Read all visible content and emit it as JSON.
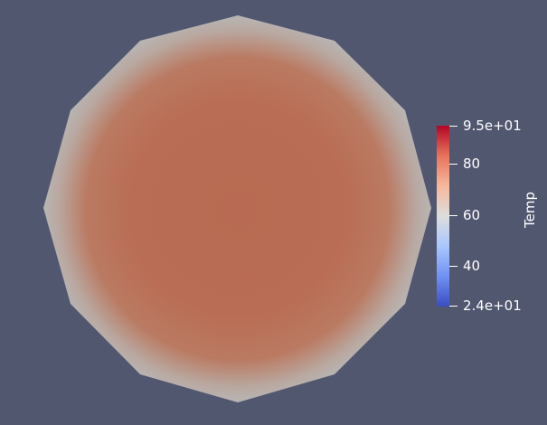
{
  "scene": {
    "background_color": "#525770",
    "field_name": "Temp",
    "shape": "dodecagon",
    "surface_colors": {
      "center": "#b86b52",
      "mid": "#ba7a62",
      "edge": "#b8b6b5"
    }
  },
  "scalar_bar": {
    "title": "Temp",
    "range": [
      24,
      95
    ],
    "max_label": "9.5e+01",
    "min_label": "2.4e+01",
    "ticks": [
      {
        "value": 95,
        "label": "9.5e+01"
      },
      {
        "value": 80,
        "label": "80"
      },
      {
        "value": 60,
        "label": "60"
      },
      {
        "value": 40,
        "label": "40"
      },
      {
        "value": 24,
        "label": "2.4e+01"
      }
    ],
    "colormap": {
      "name": "Cool to Warm",
      "colors": [
        "#3b4cc0",
        "#6f92f3",
        "#aac7fd",
        "#dddddd",
        "#f7b89c",
        "#e7745b",
        "#b40426"
      ]
    }
  }
}
